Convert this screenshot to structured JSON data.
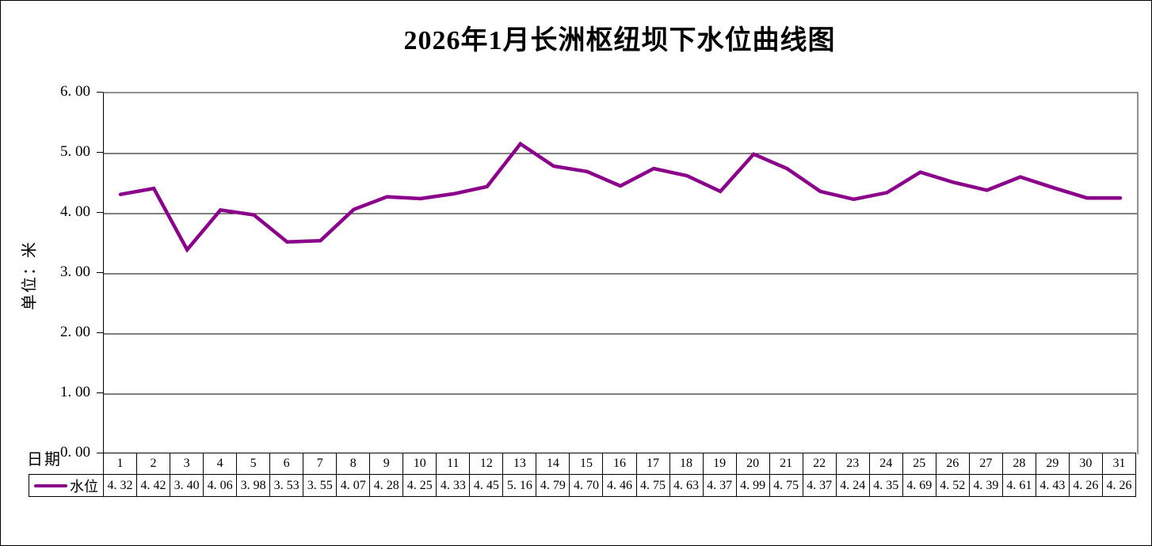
{
  "chart_data": {
    "type": "line",
    "title": "2026年1月长洲枢纽坝下水位曲线图",
    "ylabel": "单位：米",
    "xlabel": "日期",
    "ylim": [
      0,
      6
    ],
    "ytick_step": 1,
    "ytick_labels": [
      "0.00",
      "1.00",
      "2.00",
      "3.00",
      "4.00",
      "5.00",
      "6.00"
    ],
    "grid": "horizontal",
    "legend_position": "table-left",
    "categories": [
      1,
      2,
      3,
      4,
      5,
      6,
      7,
      8,
      9,
      10,
      11,
      12,
      13,
      14,
      15,
      16,
      17,
      18,
      19,
      20,
      21,
      22,
      23,
      24,
      25,
      26,
      27,
      28,
      29,
      30,
      31
    ],
    "series": [
      {
        "name": "水位",
        "color": "#8B008B",
        "values": [
          4.32,
          4.42,
          3.4,
          4.06,
          3.98,
          3.53,
          3.55,
          4.07,
          4.28,
          4.25,
          4.33,
          4.45,
          5.16,
          4.79,
          4.7,
          4.46,
          4.75,
          4.63,
          4.37,
          4.99,
          4.75,
          4.37,
          4.24,
          4.35,
          4.69,
          4.52,
          4.39,
          4.61,
          4.43,
          4.26,
          4.26
        ]
      }
    ]
  }
}
